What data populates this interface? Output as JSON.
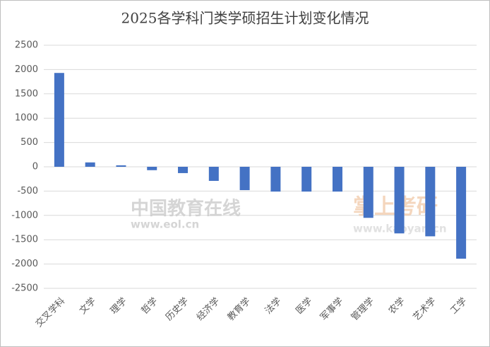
{
  "chart_data": {
    "type": "bar",
    "title": "2025各学科门类学硕招生计划变化情况",
    "categories": [
      "交叉学科",
      "文学",
      "理学",
      "哲学",
      "历史学",
      "经济学",
      "教育学",
      "法学",
      "医学",
      "军事学",
      "管理学",
      "农学",
      "艺术学",
      "工学"
    ],
    "values": [
      1930,
      90,
      30,
      -70,
      -130,
      -290,
      -480,
      -510,
      -510,
      -510,
      -1050,
      -1370,
      -1430,
      -1890
    ],
    "color": "#4472c4",
    "ylim": [
      -2500,
      2500
    ],
    "yticks": [
      -2500,
      -2000,
      -1500,
      -1000,
      -500,
      0,
      500,
      1000,
      1500,
      2000,
      2500
    ],
    "grid": true
  },
  "watermarks": [
    "中国教育在线",
    "www.eol.cn",
    "掌上考研",
    "www.kaoyan.cn"
  ]
}
